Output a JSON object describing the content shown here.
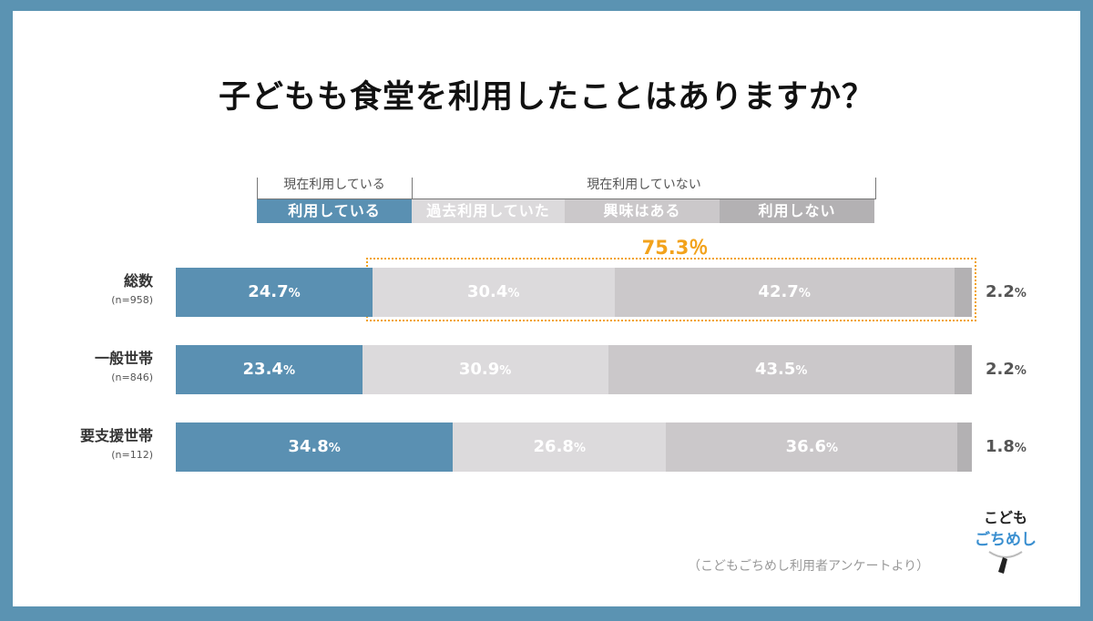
{
  "title": "子どもも食堂を利用したことはありますか？",
  "group_headers": {
    "current": "現在利用している",
    "not_current": "現在利用していない"
  },
  "bracket_label": "75.3％",
  "footnote": "（こどもごちめし利用者アンケートより）",
  "logo": {
    "line1": "こども",
    "line2": "ごちめし"
  },
  "colors": {
    "s1": "#5a90b2",
    "s2": "#dcdadc",
    "s3": "#cbc8ca",
    "s4": "#b3b1b3",
    "accent": "#f2a21b"
  },
  "chart_data": {
    "type": "bar",
    "orientation": "horizontal-stacked-100",
    "categories": [
      {
        "name": "総数",
        "n": "(n=958)"
      },
      {
        "name": "一般世帯",
        "n": "(n=846)"
      },
      {
        "name": "要支援世帯",
        "n": "(n=112)"
      }
    ],
    "series": [
      {
        "name": "利用している",
        "values": [
          24.7,
          23.4,
          34.8
        ]
      },
      {
        "name": "過去利用していた",
        "values": [
          30.4,
          30.9,
          26.8
        ]
      },
      {
        "name": "興味はある",
        "values": [
          42.7,
          43.5,
          36.6
        ]
      },
      {
        "name": "利用しない",
        "values": [
          2.2,
          2.2,
          1.8
        ]
      }
    ],
    "unit": "%",
    "value_labels": [
      [
        "24.7",
        "30.4",
        "42.7",
        "2.2"
      ],
      [
        "23.4",
        "30.9",
        "43.5",
        "2.2"
      ],
      [
        "34.8",
        "26.8",
        "36.6",
        "1.8"
      ]
    ]
  }
}
